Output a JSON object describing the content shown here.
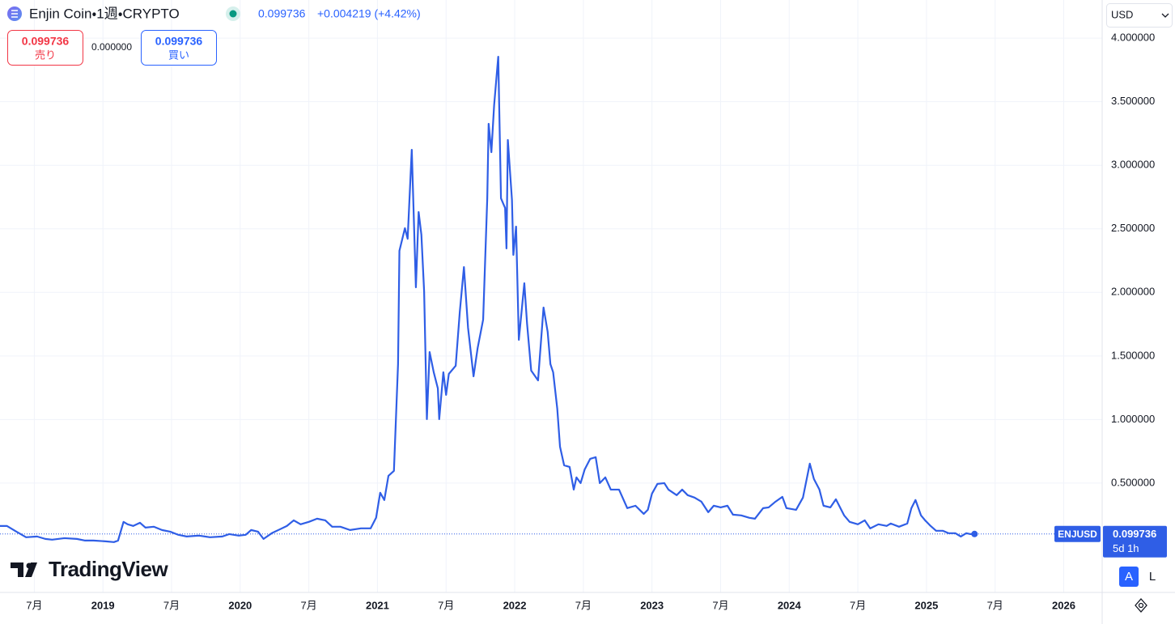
{
  "ui": {
    "symbol": "Enjin Coin・1週・CRYPTO",
    "last": "0.099736",
    "change": "+0.004219 (+4.42%)",
    "sell": {
      "price": "0.099736",
      "label": "売り"
    },
    "spread": "0.000000",
    "buy": {
      "price": "0.099736",
      "label": "買い"
    },
    "currency": "USD",
    "price_tag": {
      "value": "0.099736",
      "countdown": "5d 1h"
    },
    "buttons": [
      "A",
      "L"
    ],
    "logo": "TradingView"
  },
  "chart_data": {
    "type": "line",
    "x": [
      2018.25,
      2018.3,
      2018.37,
      2018.44,
      2018.52,
      2018.58,
      2018.63,
      2018.72,
      2018.81,
      2018.87,
      2018.93,
      2019.02,
      2019.08,
      2019.11,
      2019.15,
      2019.18,
      2019.22,
      2019.27,
      2019.31,
      2019.37,
      2019.43,
      2019.49,
      2019.55,
      2019.61,
      2019.7,
      2019.78,
      2019.87,
      2019.92,
      2019.99,
      2020.04,
      2020.08,
      2020.13,
      2020.17,
      2020.23,
      2020.29,
      2020.34,
      2020.39,
      2020.44,
      2020.5,
      2020.56,
      2020.62,
      2020.67,
      2020.73,
      2020.8,
      2020.88,
      2020.95,
      2020.99,
      2021.02,
      2021.05,
      2021.08,
      2021.12,
      2021.15,
      2021.16,
      2021.2,
      2021.22,
      2021.25,
      2021.28,
      2021.3,
      2021.32,
      2021.34,
      2021.36,
      2021.38,
      2021.41,
      2021.44,
      2021.45,
      2021.48,
      2021.5,
      2021.52,
      2021.57,
      2021.6,
      2021.63,
      2021.66,
      2021.7,
      2021.73,
      2021.77,
      2021.8,
      2021.81,
      2021.83,
      2021.85,
      2021.88,
      2021.9,
      2021.93,
      2021.94,
      2021.95,
      2021.98,
      2021.99,
      2022.01,
      2022.03,
      2022.07,
      2022.09,
      2022.12,
      2022.17,
      2022.21,
      2022.24,
      2022.26,
      2022.28,
      2022.31,
      2022.33,
      2022.36,
      2022.4,
      2022.43,
      2022.45,
      2022.48,
      2022.51,
      2022.55,
      2022.59,
      2022.62,
      2022.66,
      2022.7,
      2022.76,
      2022.82,
      2022.88,
      2022.94,
      2022.97,
      2023.0,
      2023.04,
      2023.09,
      2023.12,
      2023.18,
      2023.22,
      2023.26,
      2023.31,
      2023.36,
      2023.41,
      2023.45,
      2023.5,
      2023.55,
      2023.59,
      2023.65,
      2023.71,
      2023.75,
      2023.81,
      2023.85,
      2023.9,
      2023.95,
      2023.98,
      2024.05,
      2024.1,
      2024.15,
      2024.18,
      2024.22,
      2024.25,
      2024.3,
      2024.34,
      2024.4,
      2024.44,
      2024.5,
      2024.55,
      2024.59,
      2024.65,
      2024.71,
      2024.74,
      2024.8,
      2024.86,
      2024.89,
      2024.92,
      2024.96,
      2024.99,
      2025.03,
      2025.07,
      2025.12,
      2025.16,
      2025.21,
      2025.25,
      2025.29,
      2025.32,
      2025.35
    ],
    "series": [
      {
        "name": "ENJUSD",
        "color": "#2f5ee6",
        "values": [
          0.163,
          0.163,
          0.118,
          0.074,
          0.08,
          0.061,
          0.055,
          0.067,
          0.061,
          0.048,
          0.048,
          0.042,
          0.036,
          0.048,
          0.195,
          0.176,
          0.163,
          0.188,
          0.15,
          0.157,
          0.131,
          0.118,
          0.093,
          0.08,
          0.087,
          0.074,
          0.08,
          0.099,
          0.087,
          0.093,
          0.131,
          0.118,
          0.061,
          0.106,
          0.137,
          0.163,
          0.207,
          0.176,
          0.195,
          0.22,
          0.207,
          0.157,
          0.157,
          0.131,
          0.144,
          0.144,
          0.227,
          0.424,
          0.367,
          0.557,
          0.596,
          1.436,
          2.327,
          2.505,
          2.422,
          3.122,
          2.04,
          2.632,
          2.454,
          2.008,
          1.003,
          1.531,
          1.372,
          1.245,
          1.003,
          1.372,
          1.194,
          1.359,
          1.423,
          1.849,
          2.199,
          1.722,
          1.34,
          1.563,
          1.786,
          2.74,
          3.326,
          3.103,
          3.472,
          3.854,
          2.74,
          2.664,
          2.346,
          3.199,
          2.728,
          2.295,
          2.518,
          1.627,
          2.072,
          1.754,
          1.385,
          1.308,
          1.881,
          1.69,
          1.436,
          1.372,
          1.086,
          0.787,
          0.64,
          0.627,
          0.449,
          0.545,
          0.5,
          0.608,
          0.691,
          0.704,
          0.5,
          0.545,
          0.449,
          0.449,
          0.303,
          0.322,
          0.258,
          0.29,
          0.417,
          0.494,
          0.5,
          0.449,
          0.405,
          0.449,
          0.405,
          0.386,
          0.354,
          0.271,
          0.322,
          0.309,
          0.322,
          0.252,
          0.246,
          0.227,
          0.22,
          0.303,
          0.309,
          0.354,
          0.392,
          0.303,
          0.29,
          0.386,
          0.653,
          0.532,
          0.449,
          0.322,
          0.309,
          0.373,
          0.246,
          0.195,
          0.176,
          0.207,
          0.144,
          0.176,
          0.163,
          0.182,
          0.157,
          0.182,
          0.303,
          0.367,
          0.246,
          0.207,
          0.163,
          0.125,
          0.125,
          0.106,
          0.106,
          0.08,
          0.106,
          0.099,
          0.099736
        ]
      }
    ],
    "xlim": [
      2018.25,
      2026.28
    ],
    "xticks": [
      {
        "value": 2018.5,
        "label": "7月"
      },
      2019,
      {
        "value": 2019.5,
        "label": "7月"
      },
      2020,
      {
        "value": 2020.5,
        "label": "7月"
      },
      2021,
      {
        "value": 2021.5,
        "label": "7月"
      },
      2022,
      {
        "value": 2022.5,
        "label": "7月"
      },
      2023,
      {
        "value": 2023.5,
        "label": "7月"
      },
      2024,
      {
        "value": 2024.5,
        "label": "7月"
      },
      2025,
      {
        "value": 2025.5,
        "label": "7月"
      },
      2026
    ],
    "ylim": [
      -0.36,
      4.3
    ],
    "yticks": [
      {
        "value": 0.5,
        "label": "0.500000"
      },
      {
        "value": 1,
        "label": "1.000000"
      },
      {
        "value": 1.5,
        "label": "1.500000"
      },
      {
        "value": 2,
        "label": "2.000000"
      },
      {
        "value": 2.5,
        "label": "2.500000"
      },
      {
        "value": 3,
        "label": "3.000000"
      },
      {
        "value": 3.5,
        "label": "3.500000"
      },
      {
        "value": 4,
        "label": "4.000000"
      }
    ],
    "grid": true
  }
}
